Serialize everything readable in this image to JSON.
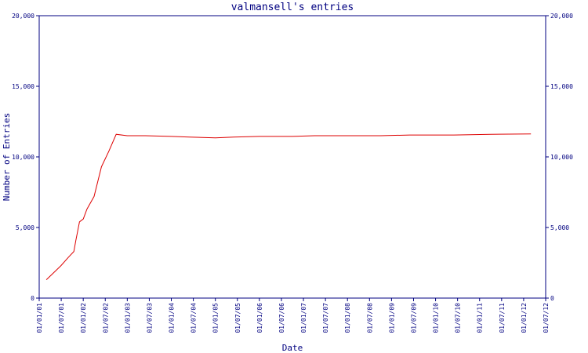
{
  "chart_data": {
    "type": "line",
    "title": "valmansell's entries",
    "xlabel": "Date",
    "ylabel": "Number of Entries",
    "ylim": [
      0,
      20000
    ],
    "yticks": [
      {
        "value": 0,
        "label": "0"
      },
      {
        "value": 5000,
        "label": "5,000"
      },
      {
        "value": 10000,
        "label": "10,000"
      },
      {
        "value": 15000,
        "label": "15,000"
      },
      {
        "value": 20000,
        "label": "20,000"
      }
    ],
    "xticks": [
      "01/01/01",
      "01/07/01",
      "01/01/02",
      "01/07/02",
      "01/01/03",
      "01/07/03",
      "01/01/04",
      "01/07/04",
      "01/01/05",
      "01/07/05",
      "01/01/06",
      "01/07/06",
      "01/01/07",
      "01/07/07",
      "01/01/08",
      "01/07/08",
      "01/01/09",
      "01/07/09",
      "01/01/10",
      "01/07/10",
      "01/01/11",
      "01/07/11",
      "01/01/12",
      "01/07/12"
    ],
    "grid": false,
    "colors": {
      "axis": "#000080",
      "line": "#dd0000"
    },
    "series": [
      {
        "x": [
          "2001-03-01",
          "2001-05-01",
          "2001-07-01",
          "2001-09-01",
          "2001-10-15",
          "2001-11-01",
          "2001-12-01",
          "2002-01-01",
          "2002-02-01",
          "2002-04-01",
          "2002-06-01",
          "2002-08-01",
          "2002-10-01",
          "2003-01-01",
          "2003-06-01",
          "2004-01-01",
          "2004-06-01",
          "2005-01-01",
          "2005-06-01",
          "2006-01-01",
          "2006-10-01",
          "2007-04-01",
          "2008-01-01",
          "2008-10-01",
          "2009-06-01",
          "2010-06-01",
          "2011-04-01",
          "2012-03-01"
        ],
        "y": [
          1300,
          1800,
          2300,
          2900,
          3300,
          4100,
          5400,
          5600,
          6300,
          7200,
          9300,
          10400,
          11600,
          11500,
          11500,
          11450,
          11400,
          11350,
          11400,
          11450,
          11450,
          11500,
          11500,
          11500,
          11550,
          11550,
          11600,
          11620
        ]
      }
    ]
  }
}
